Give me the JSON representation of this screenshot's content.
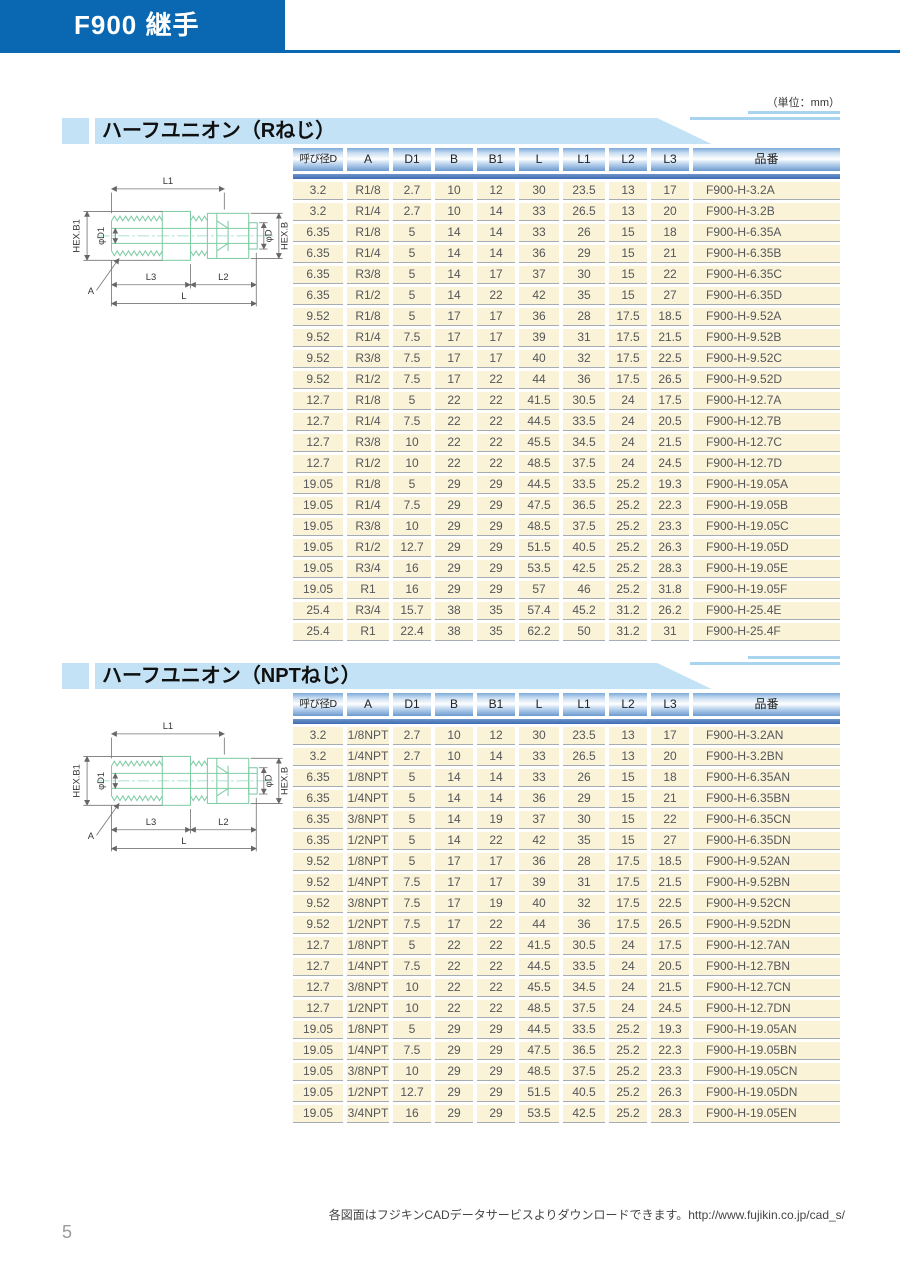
{
  "page": {
    "header_title": "F900 継手",
    "units_note": "（単位：mm）",
    "footer_note": "各図面はフジキンCADデータサービスよりダウンロードできます。http://www.fujikin.co.jp/cad_s/",
    "page_number": "5"
  },
  "colors": {
    "brand_blue": "#0968b1",
    "banner_blue": "#c3e2f5",
    "header_cell_blue": "#6c99ce",
    "underbar_blue": "#3d6bb3",
    "row_cream": "#faf3d8",
    "drawing_green": "#7ecba4"
  },
  "columns": [
    "呼び径D",
    "A",
    "D1",
    "B",
    "B1",
    "L",
    "L1",
    "L2",
    "L3",
    "品番"
  ],
  "diagram": {
    "labels": {
      "l1": "L1",
      "hex_b1": "HEX.B1",
      "phi_d1": "φD1",
      "phi_d": "φD",
      "hex_b": "HEX.B",
      "a": "A",
      "l3": "L3",
      "l2": "L2",
      "l": "L"
    }
  },
  "sections": [
    {
      "title": "ハーフユニオン（Rねじ）",
      "rows": [
        [
          "3.2",
          "R1/8",
          "2.7",
          "10",
          "12",
          "30",
          "23.5",
          "13",
          "17",
          "F900-H-3.2A"
        ],
        [
          "3.2",
          "R1/4",
          "2.7",
          "10",
          "14",
          "33",
          "26.5",
          "13",
          "20",
          "F900-H-3.2B"
        ],
        [
          "6.35",
          "R1/8",
          "5",
          "14",
          "14",
          "33",
          "26",
          "15",
          "18",
          "F900-H-6.35A"
        ],
        [
          "6.35",
          "R1/4",
          "5",
          "14",
          "14",
          "36",
          "29",
          "15",
          "21",
          "F900-H-6.35B"
        ],
        [
          "6.35",
          "R3/8",
          "5",
          "14",
          "17",
          "37",
          "30",
          "15",
          "22",
          "F900-H-6.35C"
        ],
        [
          "6.35",
          "R1/2",
          "5",
          "14",
          "22",
          "42",
          "35",
          "15",
          "27",
          "F900-H-6.35D"
        ],
        [
          "9.52",
          "R1/8",
          "5",
          "17",
          "17",
          "36",
          "28",
          "17.5",
          "18.5",
          "F900-H-9.52A"
        ],
        [
          "9.52",
          "R1/4",
          "7.5",
          "17",
          "17",
          "39",
          "31",
          "17.5",
          "21.5",
          "F900-H-9.52B"
        ],
        [
          "9.52",
          "R3/8",
          "7.5",
          "17",
          "17",
          "40",
          "32",
          "17.5",
          "22.5",
          "F900-H-9.52C"
        ],
        [
          "9.52",
          "R1/2",
          "7.5",
          "17",
          "22",
          "44",
          "36",
          "17.5",
          "26.5",
          "F900-H-9.52D"
        ],
        [
          "12.7",
          "R1/8",
          "5",
          "22",
          "22",
          "41.5",
          "30.5",
          "24",
          "17.5",
          "F900-H-12.7A"
        ],
        [
          "12.7",
          "R1/4",
          "7.5",
          "22",
          "22",
          "44.5",
          "33.5",
          "24",
          "20.5",
          "F900-H-12.7B"
        ],
        [
          "12.7",
          "R3/8",
          "10",
          "22",
          "22",
          "45.5",
          "34.5",
          "24",
          "21.5",
          "F900-H-12.7C"
        ],
        [
          "12.7",
          "R1/2",
          "10",
          "22",
          "22",
          "48.5",
          "37.5",
          "24",
          "24.5",
          "F900-H-12.7D"
        ],
        [
          "19.05",
          "R1/8",
          "5",
          "29",
          "29",
          "44.5",
          "33.5",
          "25.2",
          "19.3",
          "F900-H-19.05A"
        ],
        [
          "19.05",
          "R1/4",
          "7.5",
          "29",
          "29",
          "47.5",
          "36.5",
          "25.2",
          "22.3",
          "F900-H-19.05B"
        ],
        [
          "19.05",
          "R3/8",
          "10",
          "29",
          "29",
          "48.5",
          "37.5",
          "25.2",
          "23.3",
          "F900-H-19.05C"
        ],
        [
          "19.05",
          "R1/2",
          "12.7",
          "29",
          "29",
          "51.5",
          "40.5",
          "25.2",
          "26.3",
          "F900-H-19.05D"
        ],
        [
          "19.05",
          "R3/4",
          "16",
          "29",
          "29",
          "53.5",
          "42.5",
          "25.2",
          "28.3",
          "F900-H-19.05E"
        ],
        [
          "19.05",
          "R1",
          "16",
          "29",
          "29",
          "57",
          "46",
          "25.2",
          "31.8",
          "F900-H-19.05F"
        ],
        [
          "25.4",
          "R3/4",
          "15.7",
          "38",
          "35",
          "57.4",
          "45.2",
          "31.2",
          "26.2",
          "F900-H-25.4E"
        ],
        [
          "25.4",
          "R1",
          "22.4",
          "38",
          "35",
          "62.2",
          "50",
          "31.2",
          "31",
          "F900-H-25.4F"
        ]
      ]
    },
    {
      "title": "ハーフユニオン（NPTねじ）",
      "rows": [
        [
          "3.2",
          "1/8NPT",
          "2.7",
          "10",
          "12",
          "30",
          "23.5",
          "13",
          "17",
          "F900-H-3.2AN"
        ],
        [
          "3.2",
          "1/4NPT",
          "2.7",
          "10",
          "14",
          "33",
          "26.5",
          "13",
          "20",
          "F900-H-3.2BN"
        ],
        [
          "6.35",
          "1/8NPT",
          "5",
          "14",
          "14",
          "33",
          "26",
          "15",
          "18",
          "F900-H-6.35AN"
        ],
        [
          "6.35",
          "1/4NPT",
          "5",
          "14",
          "14",
          "36",
          "29",
          "15",
          "21",
          "F900-H-6.35BN"
        ],
        [
          "6.35",
          "3/8NPT",
          "5",
          "14",
          "19",
          "37",
          "30",
          "15",
          "22",
          "F900-H-6.35CN"
        ],
        [
          "6.35",
          "1/2NPT",
          "5",
          "14",
          "22",
          "42",
          "35",
          "15",
          "27",
          "F900-H-6.35DN"
        ],
        [
          "9.52",
          "1/8NPT",
          "5",
          "17",
          "17",
          "36",
          "28",
          "17.5",
          "18.5",
          "F900-H-9.52AN"
        ],
        [
          "9.52",
          "1/4NPT",
          "7.5",
          "17",
          "17",
          "39",
          "31",
          "17.5",
          "21.5",
          "F900-H-9.52BN"
        ],
        [
          "9.52",
          "3/8NPT",
          "7.5",
          "17",
          "19",
          "40",
          "32",
          "17.5",
          "22.5",
          "F900-H-9.52CN"
        ],
        [
          "9.52",
          "1/2NPT",
          "7.5",
          "17",
          "22",
          "44",
          "36",
          "17.5",
          "26.5",
          "F900-H-9.52DN"
        ],
        [
          "12.7",
          "1/8NPT",
          "5",
          "22",
          "22",
          "41.5",
          "30.5",
          "24",
          "17.5",
          "F900-H-12.7AN"
        ],
        [
          "12.7",
          "1/4NPT",
          "7.5",
          "22",
          "22",
          "44.5",
          "33.5",
          "24",
          "20.5",
          "F900-H-12.7BN"
        ],
        [
          "12.7",
          "3/8NPT",
          "10",
          "22",
          "22",
          "45.5",
          "34.5",
          "24",
          "21.5",
          "F900-H-12.7CN"
        ],
        [
          "12.7",
          "1/2NPT",
          "10",
          "22",
          "22",
          "48.5",
          "37.5",
          "24",
          "24.5",
          "F900-H-12.7DN"
        ],
        [
          "19.05",
          "1/8NPT",
          "5",
          "29",
          "29",
          "44.5",
          "33.5",
          "25.2",
          "19.3",
          "F900-H-19.05AN"
        ],
        [
          "19.05",
          "1/4NPT",
          "7.5",
          "29",
          "29",
          "47.5",
          "36.5",
          "25.2",
          "22.3",
          "F900-H-19.05BN"
        ],
        [
          "19.05",
          "3/8NPT",
          "10",
          "29",
          "29",
          "48.5",
          "37.5",
          "25.2",
          "23.3",
          "F900-H-19.05CN"
        ],
        [
          "19.05",
          "1/2NPT",
          "12.7",
          "29",
          "29",
          "51.5",
          "40.5",
          "25.2",
          "26.3",
          "F900-H-19.05DN"
        ],
        [
          "19.05",
          "3/4NPT",
          "16",
          "29",
          "29",
          "53.5",
          "42.5",
          "25.2",
          "28.3",
          "F900-H-19.05EN"
        ]
      ]
    }
  ]
}
